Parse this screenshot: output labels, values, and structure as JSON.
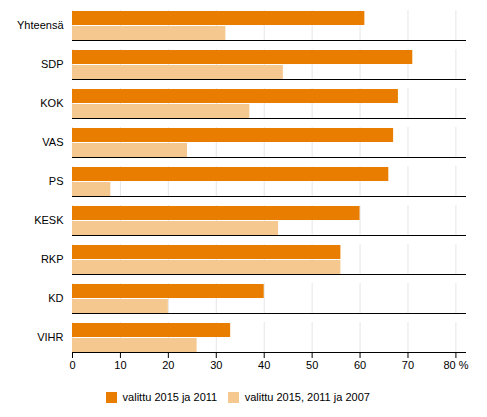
{
  "chart_data": {
    "type": "bar",
    "orientation": "horizontal",
    "categories": [
      "Yhteensä",
      "SDP",
      "KOK",
      "VAS",
      "PS",
      "KESK",
      "RKP",
      "KD",
      "VIHR"
    ],
    "series": [
      {
        "name": "valittu 2015 ja 2011",
        "color": "#E87D00",
        "values": [
          61,
          71,
          68,
          67,
          66,
          60,
          56,
          40,
          33
        ]
      },
      {
        "name": "valittu 2015, 2011 ja 2007",
        "color": "#F5C890",
        "values": [
          32,
          44,
          37,
          24,
          8,
          43,
          56,
          20,
          26
        ]
      }
    ],
    "xlim": [
      0,
      82
    ],
    "xticks": [
      0,
      10,
      20,
      30,
      40,
      50,
      60,
      70,
      {
        "value": 80,
        "label": "80 %"
      }
    ],
    "grid": true,
    "legend": "bottom"
  }
}
